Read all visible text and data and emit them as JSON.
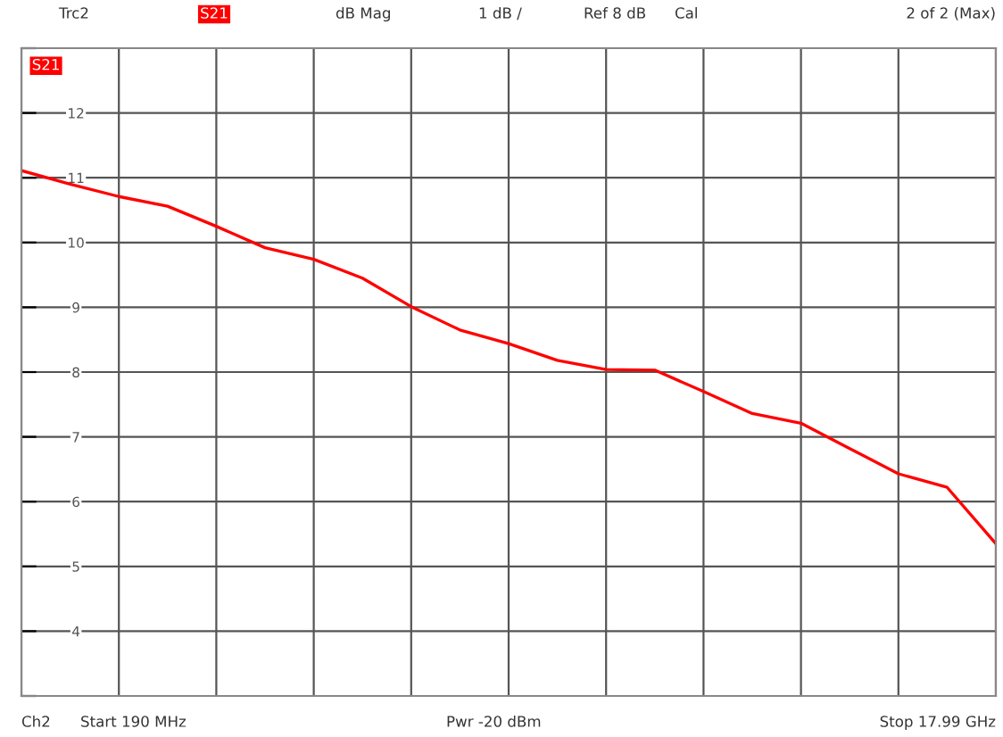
{
  "chart_data": {
    "type": "line",
    "categories": [
      null,
      null,
      null,
      null,
      null,
      null,
      null,
      null,
      null,
      null,
      null,
      null,
      null,
      null,
      null,
      null,
      null,
      null,
      null,
      null,
      null
    ],
    "series": [
      {
        "name": "S21",
        "color": "#ff0000",
        "values": [
          11.11,
          10.9,
          10.71,
          10.56,
          10.25,
          9.92,
          9.74,
          9.45,
          9.01,
          8.65,
          8.44,
          8.18,
          8.04,
          8.03,
          7.7,
          7.36,
          7.21,
          6.82,
          6.43,
          6.22,
          5.35
        ]
      }
    ],
    "ylim": [
      3,
      13
    ],
    "yticks": [
      {
        "value": 3,
        "label": null
      },
      4,
      5,
      6,
      7,
      8,
      9,
      10,
      11,
      12,
      {
        "value": 13,
        "label": null
      }
    ],
    "grid": true,
    "tick_labels": "y",
    "legend": "top left",
    "annotations": [
      "Trc2",
      "S21",
      "dB Mag",
      "1 dB /",
      "Ref 8 dB",
      "Cal",
      "2 of 2 (Max)",
      "Ch2",
      "Start 190 MHz",
      "Pwr -20 dBm",
      "Stop 17.99 GHz"
    ]
  }
}
